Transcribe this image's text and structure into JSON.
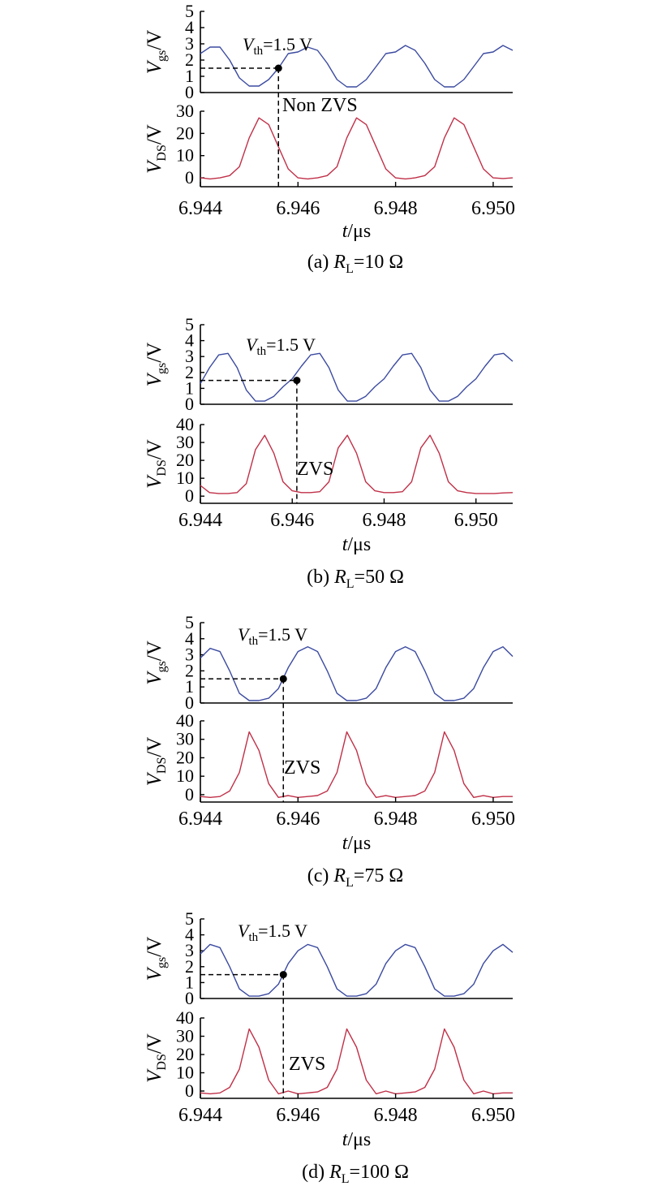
{
  "chart_data": [
    {
      "type": "line",
      "caption": {
        "prefix": "(a) ",
        "var": "R",
        "sub": "L",
        "rest": "=10 Ω"
      },
      "threshold": {
        "t": 6.9456,
        "v": 1.5,
        "label_var": "V",
        "label_sub": "th",
        "label_rest": "=1.5 V"
      },
      "mode_label": "Non ZVS",
      "xlim": [
        6.944,
        6.9504
      ],
      "x_ticks": [
        "6.944",
        "6.946",
        "6.948",
        "6.950"
      ],
      "x_tick_values": [
        6.944,
        6.946,
        6.948,
        6.95
      ],
      "xlabel": {
        "var": "t",
        "rest": "/μs"
      },
      "vgs": {
        "ylabel": {
          "var": "V",
          "sub": "gs",
          "rest": "/V"
        },
        "ylim": [
          0,
          5
        ],
        "y_ticks": [
          0,
          1,
          2,
          3,
          4,
          5
        ],
        "color": "#3b4aa0",
        "x": [
          6.944,
          6.9442,
          6.9444,
          6.9446,
          6.9448,
          6.945,
          6.9452,
          6.9454,
          6.9456,
          6.9458,
          6.946,
          6.9462,
          6.9464,
          6.9466,
          6.9468,
          6.947,
          6.9472,
          6.9474,
          6.9476,
          6.9478,
          6.948,
          6.9482,
          6.9484,
          6.9486,
          6.9488,
          6.949,
          6.9492,
          6.9494,
          6.9496,
          6.9498,
          6.95,
          6.9502,
          6.9504
        ],
        "y": [
          2.4,
          2.8,
          2.8,
          2.0,
          0.9,
          0.4,
          0.4,
          0.8,
          1.5,
          2.4,
          2.5,
          2.8,
          2.6,
          1.8,
          0.8,
          0.35,
          0.35,
          0.8,
          1.6,
          2.4,
          2.5,
          2.9,
          2.6,
          1.8,
          0.8,
          0.35,
          0.35,
          0.8,
          1.6,
          2.4,
          2.5,
          2.9,
          2.6
        ]
      },
      "vds": {
        "ylabel": {
          "var": "V",
          "sub": "DS",
          "rest": "/V"
        },
        "ylim": [
          -4,
          30
        ],
        "y_ticks": [
          0,
          10,
          20,
          30
        ],
        "color": "#c03048",
        "x": [
          6.944,
          6.9442,
          6.9444,
          6.9446,
          6.9448,
          6.945,
          6.9452,
          6.9454,
          6.9456,
          6.9458,
          6.946,
          6.9462,
          6.9464,
          6.9466,
          6.9468,
          6.947,
          6.9472,
          6.9474,
          6.9476,
          6.9478,
          6.948,
          6.9482,
          6.9484,
          6.9486,
          6.9488,
          6.949,
          6.9492,
          6.9494,
          6.9496,
          6.9498,
          6.95,
          6.9502,
          6.9504
        ],
        "y": [
          0,
          -0.5,
          0,
          1,
          5,
          18,
          27,
          24,
          14,
          4,
          0,
          -0.5,
          0,
          1,
          5,
          18,
          27,
          24,
          14,
          4,
          0,
          -0.5,
          0,
          1,
          5,
          18,
          27,
          24,
          14,
          4,
          0,
          -0.3,
          0
        ]
      }
    },
    {
      "type": "line",
      "caption": {
        "prefix": "(b) ",
        "var": "R",
        "sub": "L",
        "rest": "=50 Ω"
      },
      "threshold": {
        "t": 6.9461,
        "v": 1.5,
        "label_var": "V",
        "label_sub": "th",
        "label_rest": "=1.5 V"
      },
      "mode_label": "ZVS",
      "xlim": [
        6.944,
        6.9508
      ],
      "x_ticks": [
        "6.944",
        "6.946",
        "6.948",
        "6.950"
      ],
      "x_tick_values": [
        6.944,
        6.946,
        6.948,
        6.95
      ],
      "xlabel": {
        "var": "t",
        "rest": "/μs"
      },
      "vgs": {
        "ylabel": {
          "var": "V",
          "sub": "gs",
          "rest": "/V"
        },
        "ylim": [
          0,
          5
        ],
        "y_ticks": [
          0,
          1,
          2,
          3,
          4,
          5
        ],
        "color": "#3b4aa0",
        "x": [
          6.944,
          6.9442,
          6.9444,
          6.9446,
          6.9448,
          6.945,
          6.9452,
          6.9454,
          6.9456,
          6.9458,
          6.946,
          6.9462,
          6.9464,
          6.9466,
          6.9468,
          6.947,
          6.9472,
          6.9474,
          6.9476,
          6.9478,
          6.948,
          6.9482,
          6.9484,
          6.9486,
          6.9488,
          6.949,
          6.9492,
          6.9494,
          6.9496,
          6.9498,
          6.95,
          6.9502,
          6.9504,
          6.9506,
          6.9508
        ],
        "y": [
          1.3,
          2.3,
          3.1,
          3.2,
          2.3,
          0.9,
          0.2,
          0.2,
          0.5,
          1.1,
          1.6,
          2.4,
          3.1,
          3.2,
          2.3,
          0.9,
          0.2,
          0.2,
          0.5,
          1.1,
          1.6,
          2.4,
          3.1,
          3.2,
          2.3,
          0.9,
          0.2,
          0.2,
          0.5,
          1.1,
          1.6,
          2.4,
          3.1,
          3.2,
          2.7
        ]
      },
      "vds": {
        "ylabel": {
          "var": "V",
          "sub": "DS",
          "rest": "/V"
        },
        "ylim": [
          -4,
          40
        ],
        "y_ticks": [
          0,
          10,
          20,
          30,
          40
        ],
        "color": "#c03048",
        "x": [
          6.944,
          6.9442,
          6.9444,
          6.9446,
          6.9448,
          6.945,
          6.9452,
          6.9454,
          6.9456,
          6.9458,
          6.946,
          6.9462,
          6.9464,
          6.9466,
          6.9468,
          6.947,
          6.9472,
          6.9474,
          6.9476,
          6.9478,
          6.948,
          6.9482,
          6.9484,
          6.9486,
          6.9488,
          6.949,
          6.9492,
          6.9494,
          6.9496,
          6.9498,
          6.95,
          6.9502,
          6.9504,
          6.9506,
          6.9508
        ],
        "y": [
          6,
          2,
          1.5,
          1.5,
          2,
          7,
          26,
          34,
          24,
          8,
          3,
          2,
          2,
          2.5,
          8,
          27,
          34,
          24,
          8,
          3,
          2,
          2,
          2.5,
          8,
          27,
          34,
          24,
          8,
          3,
          2,
          1.5,
          1.5,
          1.5,
          1.8,
          2
        ]
      }
    },
    {
      "type": "line",
      "caption": {
        "prefix": "(c) ",
        "var": "R",
        "sub": "L",
        "rest": "=75 Ω"
      },
      "threshold": {
        "t": 6.9457,
        "v": 1.5,
        "label_var": "V",
        "label_sub": "th",
        "label_rest": "=1.5 V"
      },
      "mode_label": "ZVS",
      "xlim": [
        6.944,
        6.9504
      ],
      "x_ticks": [
        "6.944",
        "6.946",
        "6.948",
        "6.950"
      ],
      "x_tick_values": [
        6.944,
        6.946,
        6.948,
        6.95
      ],
      "xlabel": {
        "var": "t",
        "rest": "/μs"
      },
      "vgs": {
        "ylabel": {
          "var": "V",
          "sub": "gs",
          "rest": "/V"
        },
        "ylim": [
          0,
          5
        ],
        "y_ticks": [
          0,
          1,
          2,
          3,
          4,
          5
        ],
        "color": "#3b4aa0",
        "x": [
          6.944,
          6.9442,
          6.9444,
          6.9446,
          6.9448,
          6.945,
          6.9452,
          6.9454,
          6.9456,
          6.9458,
          6.946,
          6.9462,
          6.9464,
          6.9466,
          6.9468,
          6.947,
          6.9472,
          6.9474,
          6.9476,
          6.9478,
          6.948,
          6.9482,
          6.9484,
          6.9486,
          6.9488,
          6.949,
          6.9492,
          6.9494,
          6.9496,
          6.9498,
          6.95,
          6.9502,
          6.9504
        ],
        "y": [
          2.8,
          3.4,
          3.2,
          2.0,
          0.6,
          0.15,
          0.15,
          0.3,
          0.9,
          2.2,
          3.2,
          3.5,
          3.2,
          2.0,
          0.6,
          0.15,
          0.15,
          0.3,
          0.9,
          2.2,
          3.2,
          3.5,
          3.2,
          2.0,
          0.6,
          0.15,
          0.15,
          0.3,
          0.9,
          2.2,
          3.2,
          3.5,
          2.9
        ]
      },
      "vds": {
        "ylabel": {
          "var": "V",
          "sub": "DS",
          "rest": "/V"
        },
        "ylim": [
          -4,
          40
        ],
        "y_ticks": [
          0,
          10,
          20,
          30,
          40
        ],
        "color": "#c03048",
        "x": [
          6.944,
          6.9442,
          6.9444,
          6.9446,
          6.9448,
          6.945,
          6.9452,
          6.9454,
          6.9456,
          6.9458,
          6.946,
          6.9462,
          6.9464,
          6.9466,
          6.9468,
          6.947,
          6.9472,
          6.9474,
          6.9476,
          6.9478,
          6.948,
          6.9482,
          6.9484,
          6.9486,
          6.9488,
          6.949,
          6.9492,
          6.9494,
          6.9496,
          6.9498,
          6.95,
          6.9502,
          6.9504
        ],
        "y": [
          -1,
          -1.5,
          -1,
          2,
          12,
          34,
          24,
          6,
          -1.5,
          -0.5,
          -1.5,
          -1,
          -0.5,
          2,
          12,
          34,
          24,
          6,
          -1.5,
          -0.5,
          -1.5,
          -1,
          -0.5,
          2,
          12,
          34,
          24,
          6,
          -1.5,
          -0.5,
          -1.5,
          -1,
          -1
        ]
      }
    },
    {
      "type": "line",
      "caption": {
        "prefix": "(d) ",
        "var": "R",
        "sub": "L",
        "rest": "=100 Ω"
      },
      "threshold": {
        "t": 6.9457,
        "v": 1.5,
        "label_var": "V",
        "label_sub": "th",
        "label_rest": "=1.5 V"
      },
      "mode_label": "ZVS",
      "xlim": [
        6.944,
        6.9504
      ],
      "x_ticks": [
        "6.944",
        "6.946",
        "6.948",
        "6.950"
      ],
      "x_tick_values": [
        6.944,
        6.946,
        6.948,
        6.95
      ],
      "xlabel": {
        "var": "t",
        "rest": "/μs"
      },
      "vgs": {
        "ylabel": {
          "var": "V",
          "sub": "gs",
          "rest": "/V"
        },
        "ylim": [
          0,
          5
        ],
        "y_ticks": [
          0,
          1,
          2,
          3,
          4,
          5
        ],
        "color": "#3b4aa0",
        "x": [
          6.944,
          6.9442,
          6.9444,
          6.9446,
          6.9448,
          6.945,
          6.9452,
          6.9454,
          6.9456,
          6.9458,
          6.946,
          6.9462,
          6.9464,
          6.9466,
          6.9468,
          6.947,
          6.9472,
          6.9474,
          6.9476,
          6.9478,
          6.948,
          6.9482,
          6.9484,
          6.9486,
          6.9488,
          6.949,
          6.9492,
          6.9494,
          6.9496,
          6.9498,
          6.95,
          6.9502,
          6.9504
        ],
        "y": [
          2.8,
          3.4,
          3.2,
          2.0,
          0.6,
          0.15,
          0.15,
          0.3,
          0.9,
          2.2,
          3.0,
          3.4,
          3.2,
          2.0,
          0.6,
          0.15,
          0.15,
          0.3,
          0.9,
          2.2,
          3.0,
          3.4,
          3.2,
          2.0,
          0.6,
          0.15,
          0.15,
          0.3,
          0.9,
          2.2,
          3.0,
          3.4,
          2.9
        ]
      },
      "vds": {
        "ylabel": {
          "var": "V",
          "sub": "DS",
          "rest": "/V"
        },
        "ylim": [
          -4,
          40
        ],
        "y_ticks": [
          0,
          10,
          20,
          30,
          40
        ],
        "color": "#c03048",
        "x": [
          6.944,
          6.9442,
          6.9444,
          6.9446,
          6.9448,
          6.945,
          6.9452,
          6.9454,
          6.9456,
          6.9458,
          6.946,
          6.9462,
          6.9464,
          6.9466,
          6.9468,
          6.947,
          6.9472,
          6.9474,
          6.9476,
          6.9478,
          6.948,
          6.9482,
          6.9484,
          6.9486,
          6.9488,
          6.949,
          6.9492,
          6.9494,
          6.9496,
          6.9498,
          6.95,
          6.9502,
          6.9504
        ],
        "y": [
          -1,
          -1.5,
          -1,
          2,
          12,
          34,
          24,
          6,
          -1.5,
          0,
          -1.5,
          -1,
          -0.5,
          2,
          12,
          34,
          24,
          6,
          -1.5,
          0,
          -1.5,
          -1,
          -0.5,
          2,
          12,
          34,
          24,
          6,
          -1.5,
          0,
          -1.5,
          -1,
          -1
        ]
      }
    }
  ]
}
